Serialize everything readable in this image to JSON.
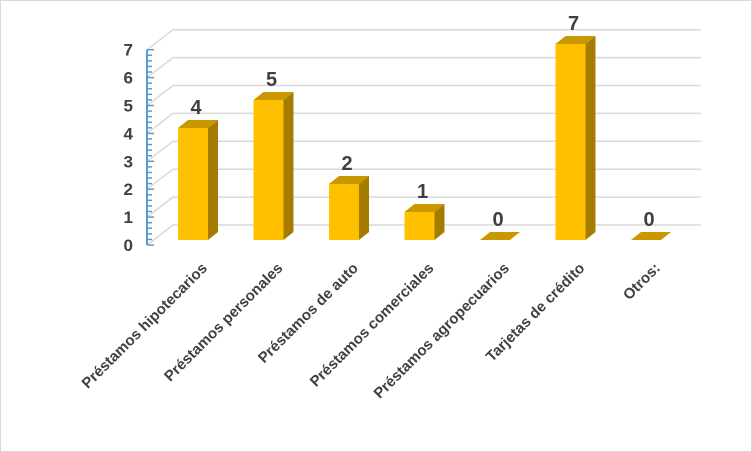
{
  "chart_data": {
    "type": "bar",
    "style": "3d-column",
    "categories": [
      "Préstamos hipotecarios",
      "Préstamos personales",
      "Préstamos de auto",
      "Préstamos comerciales",
      "Préstamos agropecuarios",
      "Tarjetas de crédito",
      "Otros:"
    ],
    "values": [
      4,
      5,
      2,
      1,
      0,
      7,
      0
    ],
    "ylim": [
      0,
      7
    ],
    "yticks": [
      "0",
      "1",
      "2",
      "3",
      "4",
      "5",
      "6",
      "7"
    ],
    "grid": true,
    "legend": "none",
    "colors": {
      "bar": "#FFC000",
      "bar_side": "#A67C00",
      "bar_top": "#C99700",
      "axis": "#5B9BD5",
      "grid": "#D9D9D9",
      "text": "#404040"
    }
  }
}
